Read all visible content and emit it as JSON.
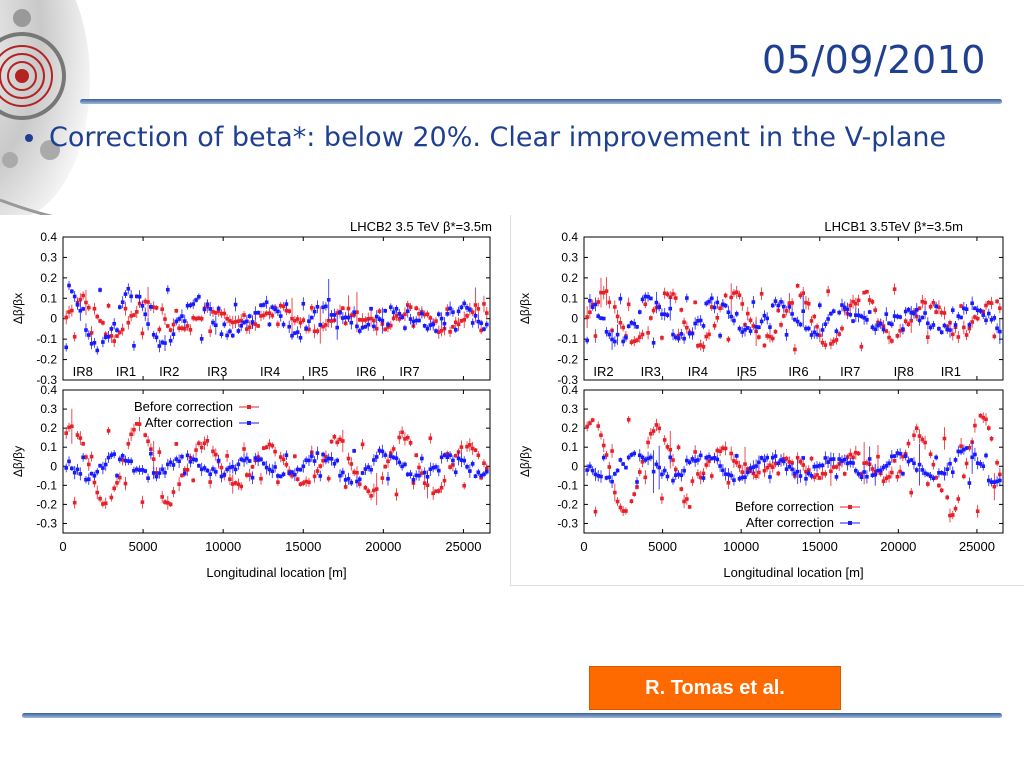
{
  "slide": {
    "date": "05/09/2010",
    "bullet": "Correction of beta*: below 20%. Clear improvement in the V-plane",
    "credit": "R. Tomas et al."
  },
  "colors": {
    "title": "#1f3f91",
    "before": "#e8202a",
    "after": "#1a1aff",
    "credit_bg": "#ff6a00"
  },
  "icons": {
    "logo": "lhc-accelerator-logo-icon",
    "bullet": "bullet-dot-icon"
  },
  "chart_data": [
    {
      "type": "scatter",
      "title": "LHCB2 3.5 TeV β*=3.5m",
      "panels": [
        {
          "ylabel": "Δβ/βx",
          "ylim": [
            -0.3,
            0.4
          ],
          "yticks": [
            "0.4",
            "0.3",
            "0.2",
            "0.1",
            "0",
            "-0.1",
            "-0.2",
            "-0.3"
          ],
          "ir_labels": [
            {
              "label": "IR8",
              "x": 600
            },
            {
              "label": "IR1",
              "x": 3300
            },
            {
              "label": "IR2",
              "x": 6000
            },
            {
              "label": "IR3",
              "x": 9000
            },
            {
              "label": "IR4",
              "x": 12300
            },
            {
              "label": "IR5",
              "x": 15300
            },
            {
              "label": "IR6",
              "x": 18300
            },
            {
              "label": "IR7",
              "x": 21000
            }
          ],
          "series": [
            {
              "color": "#e8202a",
              "amplitude": 0.1,
              "noise": 0.05,
              "env": [
                0.09,
                0.08,
                0.05,
                0.04,
                0.05,
                0.03,
                0.05,
                0.06
              ]
            },
            {
              "color": "#1a1aff",
              "amplitude": 0.12,
              "noise": 0.05,
              "env": [
                0.15,
                0.13,
                0.09,
                0.06,
                0.08,
                0.04,
                0.04,
                0.06
              ]
            }
          ]
        },
        {
          "ylabel": "Δβ/βy",
          "ylim": [
            -0.35,
            0.4
          ],
          "yticks": [
            "0.4",
            "0.3",
            "0.2",
            "0.1",
            "0",
            "-0.1",
            "-0.2",
            "-0.3"
          ],
          "legend": [
            "Before correction",
            "After correction"
          ],
          "legend_position": "top-center",
          "series": [
            {
              "name": "Before correction",
              "color": "#e8202a",
              "amplitude": 0.2,
              "noise": 0.04,
              "env": [
                0.2,
                0.22,
                0.12,
                0.1,
                0.1,
                0.14,
                0.16,
                0.12
              ]
            },
            {
              "name": "After correction",
              "color": "#1a1aff",
              "amplitude": 0.06,
              "noise": 0.04,
              "env": [
                0.06,
                0.05,
                0.04,
                0.04,
                0.05,
                0.07,
                0.06,
                0.05
              ]
            }
          ]
        }
      ],
      "xlabel": "Longitudinal location [m]",
      "xlim": [
        0,
        26659
      ],
      "xticks": [
        0,
        5000,
        10000,
        15000,
        20000,
        25000
      ]
    },
    {
      "type": "scatter",
      "title": "LHCB1 3.5TeV β*=3.5m",
      "panels": [
        {
          "ylabel": "Δβ/βx",
          "ylim": [
            -0.3,
            0.4
          ],
          "yticks": [
            "0.4",
            "0.3",
            "0.2",
            "0.1",
            "0",
            "-0.1",
            "-0.2",
            "-0.3"
          ],
          "ir_labels": [
            {
              "label": "IR2",
              "x": 600
            },
            {
              "label": "IR3",
              "x": 3600
            },
            {
              "label": "IR4",
              "x": 6600
            },
            {
              "label": "IR5",
              "x": 9700
            },
            {
              "label": "IR6",
              "x": 13000
            },
            {
              "label": "IR7",
              "x": 16300
            },
            {
              "label": "IR8",
              "x": 19700
            },
            {
              "label": "IR1",
              "x": 22700
            }
          ],
          "series": [
            {
              "color": "#e8202a",
              "amplitude": 0.12,
              "noise": 0.05,
              "env": [
                0.12,
                0.12,
                0.12,
                0.11,
                0.14,
                0.12,
                0.07,
                0.07
              ]
            },
            {
              "color": "#1a1aff",
              "amplitude": 0.1,
              "noise": 0.05,
              "env": [
                0.1,
                0.1,
                0.08,
                0.07,
                0.06,
                0.05,
                0.05,
                0.06
              ]
            }
          ]
        },
        {
          "ylabel": "Δβ/βy",
          "ylim": [
            -0.35,
            0.4
          ],
          "yticks": [
            "0.4",
            "0.3",
            "0.2",
            "0.1",
            "0",
            "-0.1",
            "-0.2",
            "-0.3"
          ],
          "legend": [
            "Before correction",
            "After correction"
          ],
          "legend_position": "bottom-right",
          "series": [
            {
              "name": "Before correction",
              "color": "#e8202a",
              "amplitude": 0.2,
              "noise": 0.04,
              "env": [
                0.24,
                0.2,
                0.08,
                0.04,
                0.05,
                0.06,
                0.18,
                0.25
              ]
            },
            {
              "name": "After correction",
              "color": "#1a1aff",
              "amplitude": 0.06,
              "noise": 0.04,
              "env": [
                0.07,
                0.06,
                0.06,
                0.05,
                0.05,
                0.05,
                0.06,
                0.08
              ]
            }
          ]
        }
      ],
      "xlabel": "Longitudinal location [m]",
      "xlim": [
        0,
        26659
      ],
      "xticks": [
        0,
        5000,
        10000,
        15000,
        20000,
        25000
      ]
    }
  ]
}
